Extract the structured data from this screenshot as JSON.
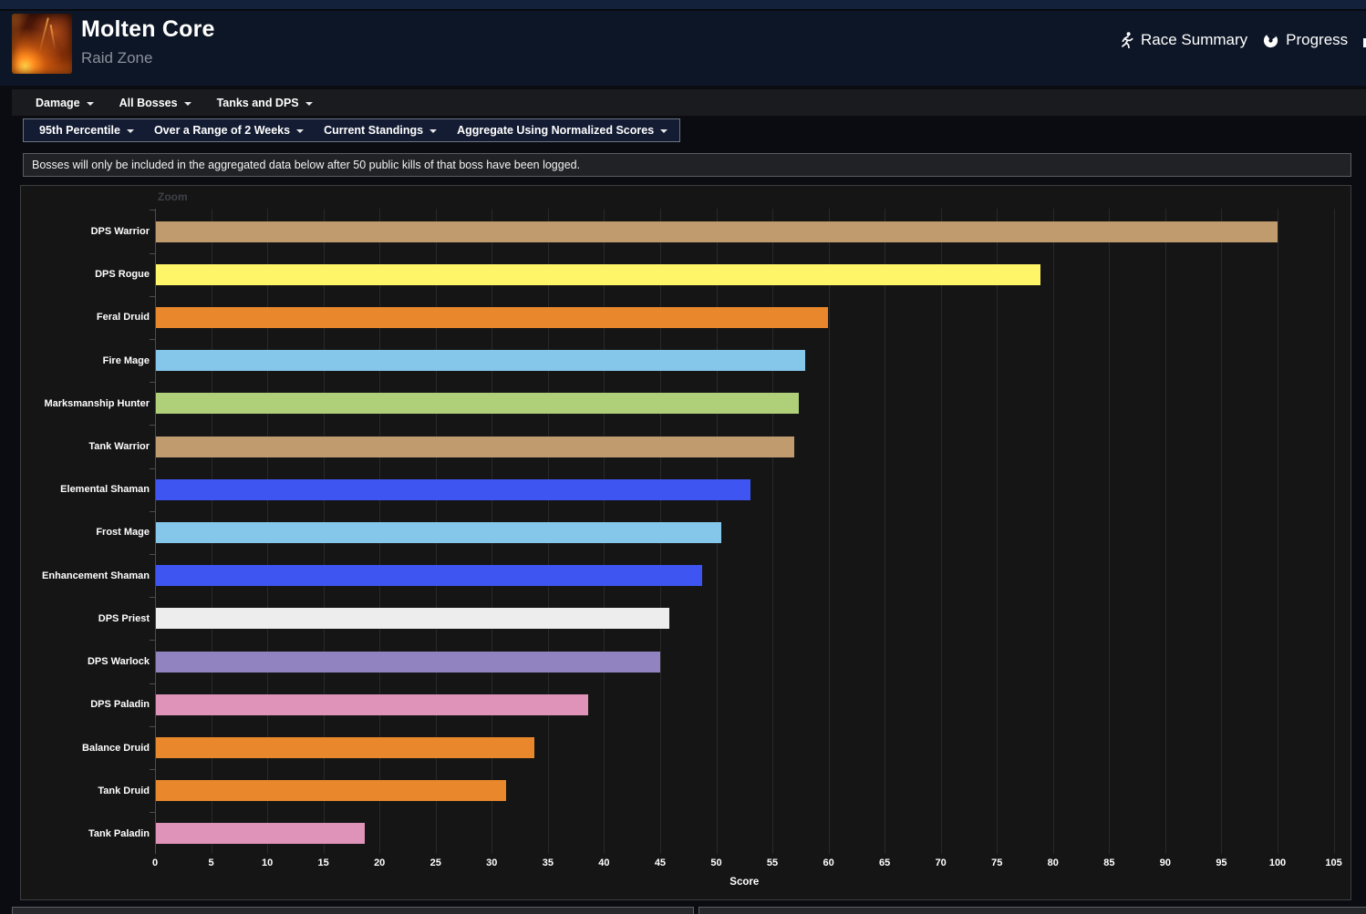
{
  "header": {
    "title": "Molten Core",
    "subtitle": "Raid Zone",
    "links": [
      {
        "label": "Race Summary",
        "icon": "runner-icon"
      },
      {
        "label": "Progress",
        "icon": "globe-icon"
      }
    ]
  },
  "nav_primary": {
    "items": [
      {
        "label": "Damage"
      },
      {
        "label": "All Bosses"
      },
      {
        "label": "Tanks and DPS"
      }
    ]
  },
  "nav_filters": {
    "items": [
      {
        "label": "95th Percentile"
      },
      {
        "label": "Over a Range of 2 Weeks"
      },
      {
        "label": "Current Standings"
      },
      {
        "label": "Aggregate Using Normalized Scores"
      }
    ]
  },
  "notice": {
    "text": "Bosses will only be included in the aggregated data below after 50 public kills of that boss have been logged."
  },
  "chart_data": {
    "type": "bar",
    "orientation": "horizontal",
    "zoom_label": "Zoom",
    "xlabel": "Score",
    "xlim": [
      0,
      105
    ],
    "xticks": [
      0,
      5,
      10,
      15,
      20,
      25,
      30,
      35,
      40,
      45,
      50,
      55,
      60,
      65,
      70,
      75,
      80,
      85,
      90,
      95,
      100,
      105
    ],
    "grid": true,
    "legend": "none",
    "categories": [
      "DPS Warrior",
      "DPS Rogue",
      "Feral Druid",
      "Fire Mage",
      "Marksmanship Hunter",
      "Tank Warrior",
      "Elemental Shaman",
      "Frost Mage",
      "Enhancement Shaman",
      "DPS Priest",
      "DPS Warlock",
      "DPS Paladin",
      "Balance Druid",
      "Tank Druid",
      "Tank Paladin"
    ],
    "values": [
      99.9,
      78.8,
      59.9,
      57.8,
      57.3,
      56.9,
      53.0,
      50.4,
      48.7,
      45.7,
      44.9,
      38.5,
      33.7,
      31.2,
      18.6
    ],
    "colors": [
      "#BF9B6E",
      "#FFF569",
      "#E8872B",
      "#85C7EA",
      "#AFD078",
      "#BF9B6E",
      "#3E55F2",
      "#85C7EA",
      "#3E55F2",
      "#EDEDED",
      "#9083BF",
      "#E093B9",
      "#E8872B",
      "#E8872B",
      "#E093B9"
    ]
  }
}
